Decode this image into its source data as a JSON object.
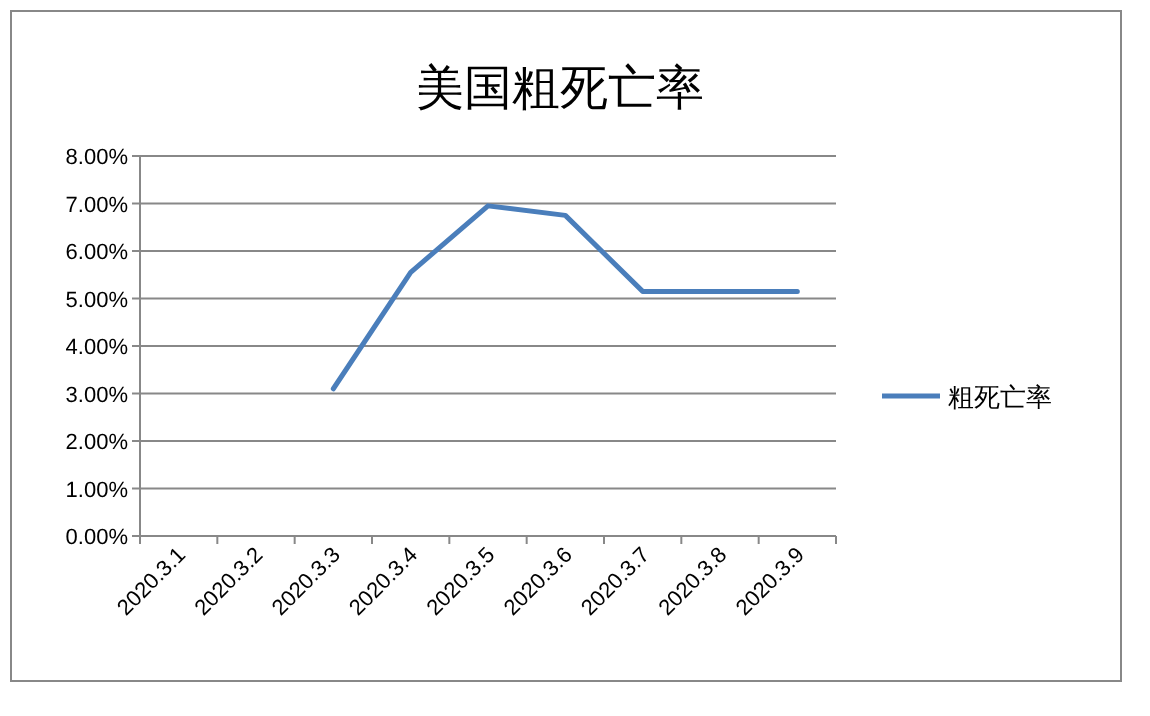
{
  "chart_data": {
    "type": "line",
    "title": "美国粗死亡率",
    "categories": [
      "2020.3.1",
      "2020.3.2",
      "2020.3.3",
      "2020.3.4",
      "2020.3.5",
      "2020.3.6",
      "2020.3.7",
      "2020.3.8",
      "2020.3.9"
    ],
    "series": [
      {
        "name": "粗死亡率",
        "color": "#4a7ebb",
        "values": [
          null,
          null,
          3.1,
          5.55,
          6.95,
          6.75,
          5.15,
          5.15,
          5.15
        ]
      }
    ],
    "ylim": [
      0,
      8
    ],
    "yticks": [
      {
        "value": 0,
        "label": "0.00%"
      },
      {
        "value": 1,
        "label": "1.00%"
      },
      {
        "value": 2,
        "label": "2.00%"
      },
      {
        "value": 3,
        "label": "3.00%"
      },
      {
        "value": 4,
        "label": "4.00%"
      },
      {
        "value": 5,
        "label": "5.00%"
      },
      {
        "value": 6,
        "label": "6.00%"
      },
      {
        "value": 7,
        "label": "7.00%"
      },
      {
        "value": 8,
        "label": "8.00%"
      }
    ],
    "grid": "y",
    "legend": "right",
    "marker": "none",
    "line_style": "solid"
  }
}
